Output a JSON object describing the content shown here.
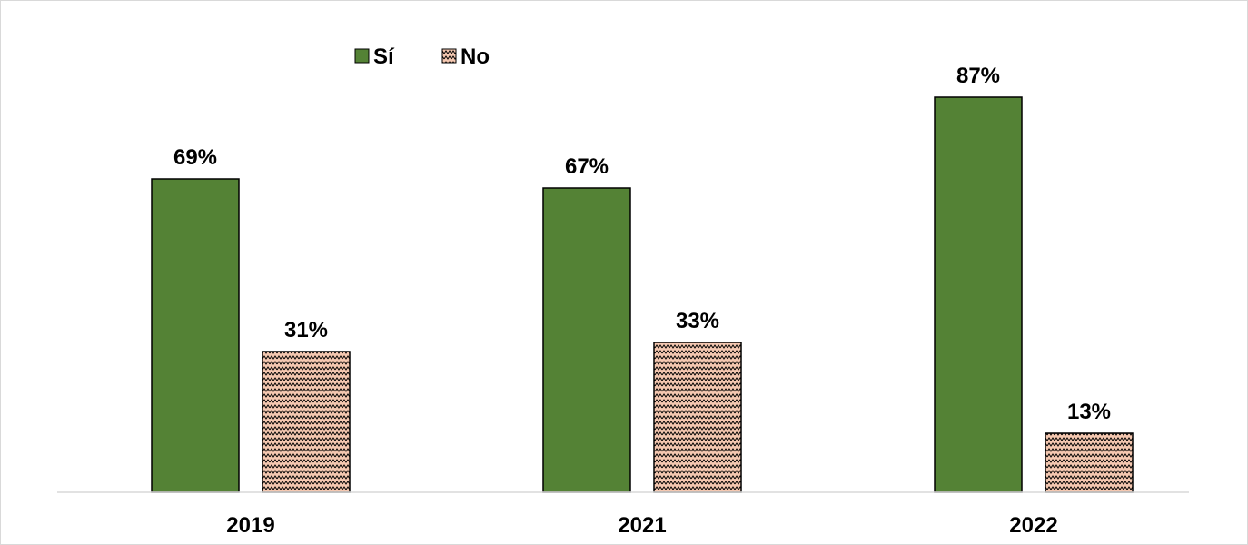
{
  "chart_data": {
    "type": "bar",
    "categories": [
      "2019",
      "2021",
      "2022"
    ],
    "series": [
      {
        "name": "Sí",
        "values": [
          69,
          67,
          87
        ],
        "labels": [
          "69%",
          "67%",
          "87%"
        ],
        "color": "#548235",
        "pattern": "solid"
      },
      {
        "name": "No",
        "values": [
          31,
          33,
          13
        ],
        "labels": [
          "31%",
          "33%",
          "13%"
        ],
        "color": "#f4c7b0",
        "pattern": "zigzag"
      }
    ],
    "ylim": [
      0,
      100
    ],
    "grid": false,
    "legend": "top-left",
    "unit": "%"
  }
}
